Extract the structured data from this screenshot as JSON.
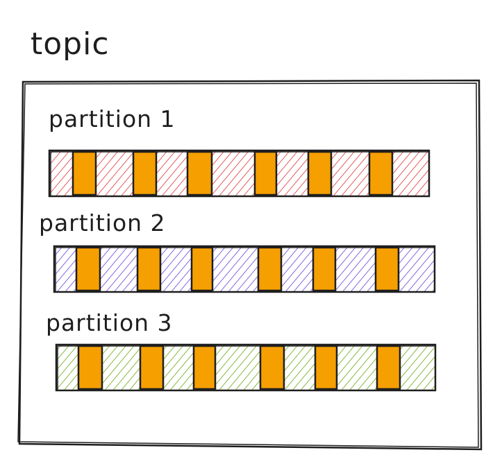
{
  "topic": {
    "title": "topic"
  },
  "partitions": [
    {
      "label": "partition 1",
      "fill_color": "#e03131",
      "message_count": 6
    },
    {
      "label": "partition 2",
      "fill_color": "#6741d9",
      "message_count": 6
    },
    {
      "label": "partition 3",
      "fill_color": "#66a80f",
      "message_count": 6
    }
  ],
  "message_color": "#f59f00",
  "stroke_color": "#1e1e1e"
}
